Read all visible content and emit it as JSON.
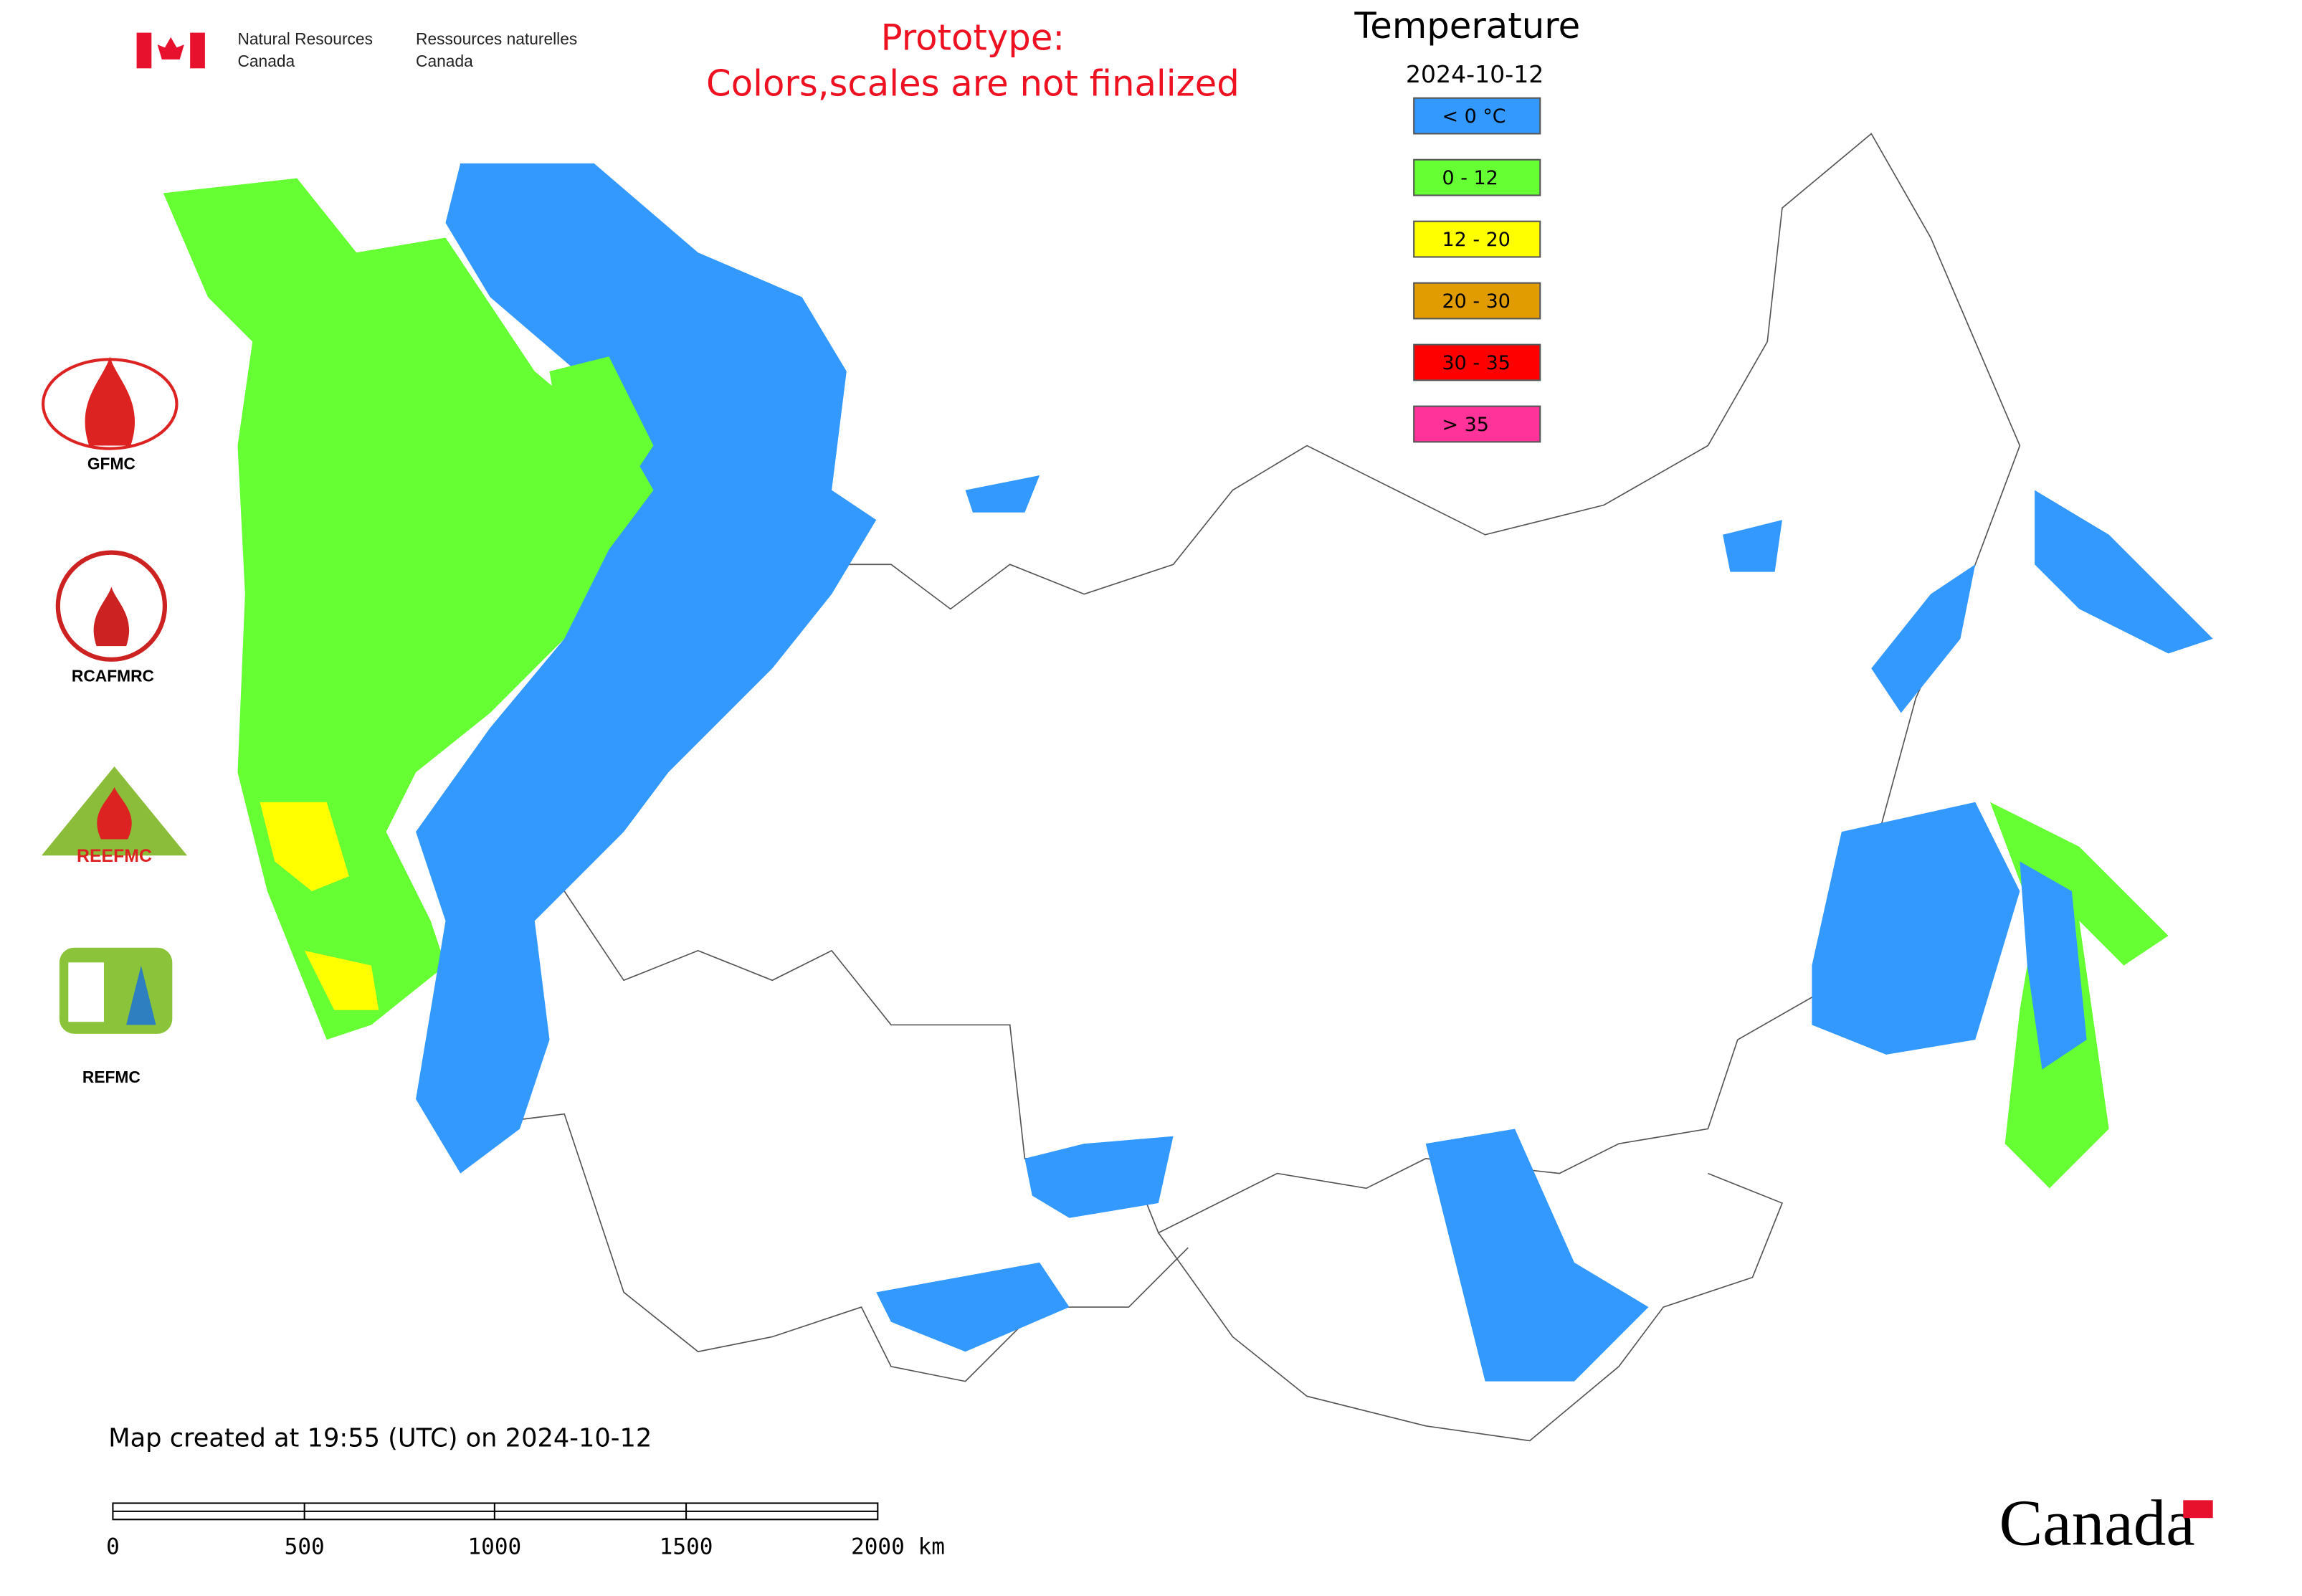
{
  "header": {
    "agency_en_1": "Natural Resources",
    "agency_en_2": "Canada",
    "agency_fr_1": "Ressources naturelles",
    "agency_fr_2": "Canada",
    "notice_1": "Prototype:",
    "notice_2": "Colors,scales are not finalized"
  },
  "legend": {
    "title": "Temperature",
    "date": "2024-10-12",
    "items": [
      {
        "label": "< 0 °C",
        "color": "#3399ff"
      },
      {
        "label": "0 - 12",
        "color": "#66ff33"
      },
      {
        "label": "12 - 20",
        "color": "#ffff00"
      },
      {
        "label": "20 - 30",
        "color": "#e09c00"
      },
      {
        "label": "30 - 35",
        "color": "#ff0000"
      },
      {
        "label": "> 35",
        "color": "#ff3399"
      }
    ]
  },
  "logos": [
    "GFMC",
    "RCAFMRC",
    "REEFMC",
    "REFMC"
  ],
  "footer": {
    "created": "Map created at 19:55 (UTC) on 2024-10-12",
    "wordmark": "Canada"
  },
  "scale_bar": {
    "ticks": [
      "0",
      "500",
      "1000",
      "1500",
      "2000 km"
    ]
  }
}
